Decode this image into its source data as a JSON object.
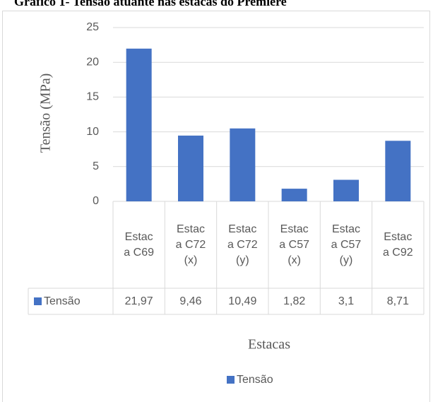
{
  "chart_data": {
    "type": "bar",
    "title": "Gráfico 1- Tensão atuante nas estacas do Premiere",
    "y_axis_label": "Tensão (MPa)",
    "x_axis_label": "Estacas",
    "categories": [
      "Estaca C69",
      "Estaca C72 (x)",
      "Estaca C72 (y)",
      "Estaca C57 (x)",
      "Estaca C57 (y)",
      "Estaca C92"
    ],
    "series": [
      {
        "name": "Tensão",
        "color": "#4472c4",
        "values": [
          21.97,
          9.46,
          10.49,
          1.82,
          3.1,
          8.71
        ],
        "value_labels": [
          "21,97",
          "9,46",
          "10,49",
          "1,82",
          "3,1",
          "8,71"
        ]
      }
    ],
    "ylim": [
      0,
      25
    ],
    "yticks": [
      0,
      5,
      10,
      15,
      20,
      25
    ],
    "grid": true
  }
}
